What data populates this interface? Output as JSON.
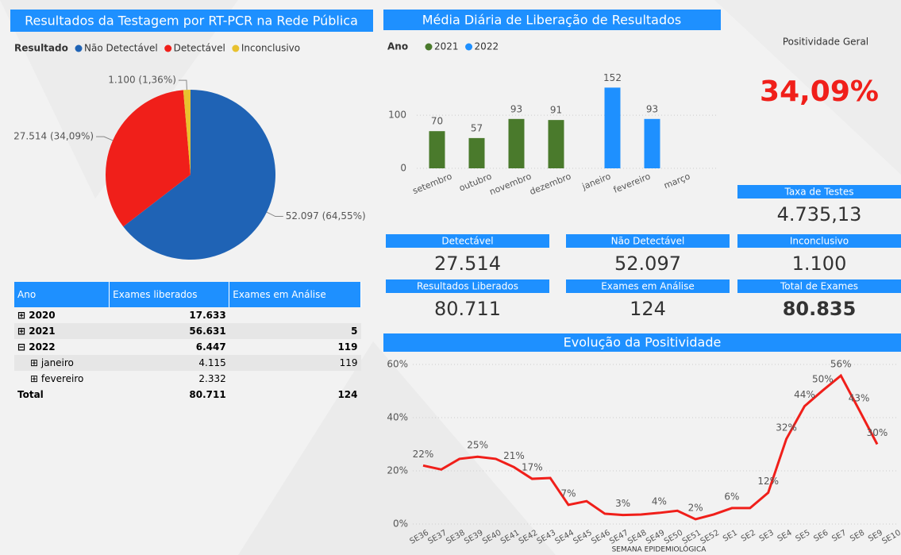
{
  "chart_data": [
    {
      "type": "pie",
      "title": "Resultados da Testagem por RT-PCR na Rede Pública",
      "legend_title": "Resultado",
      "categories": [
        "Não Detectável",
        "Detectável",
        "Inconclusivo"
      ],
      "values": [
        52097,
        27514,
        1100
      ],
      "value_labels": [
        "52.097 (64,55%)",
        "27.514 (34,09%)",
        "1.100 (1,36%)"
      ],
      "colors": [
        "#1f63b5",
        "#f01f1a",
        "#e8c12f"
      ]
    },
    {
      "type": "bar",
      "title": "Média Diária de Liberação de Resultados",
      "legend_title": "Ano",
      "categories": [
        "setembro",
        "outubro",
        "novembro",
        "dezembro",
        "janeiro",
        "fevereiro",
        "março"
      ],
      "series": [
        {
          "name": "2021",
          "color": "#4a7a2c",
          "values": [
            70,
            57,
            93,
            91,
            null,
            null,
            null
          ]
        },
        {
          "name": "2022",
          "color": "#1e90ff",
          "values": [
            null,
            null,
            null,
            null,
            152,
            93,
            null
          ]
        }
      ],
      "ylim": [
        0,
        160
      ],
      "yticks": [
        0,
        100
      ],
      "grid": true
    },
    {
      "type": "line",
      "title": "Evolução da Positividade",
      "xlabel": "SEMANA EPIDEMIOLÓGICA",
      "categories": [
        "SE36",
        "SE37",
        "SE38",
        "SE39",
        "SE40",
        "SE41",
        "SE42",
        "SE43",
        "SE44",
        "SE45",
        "SE46",
        "SE47",
        "SE48",
        "SE49",
        "SE50",
        "SE51",
        "SE52",
        "SE1",
        "SE2",
        "SE3",
        "SE4",
        "SE5",
        "SE6",
        "SE7",
        "SE8",
        "SE9",
        "SE10"
      ],
      "series": [
        {
          "name": "Positividade",
          "color": "#f01f1a",
          "values": [
            22,
            20.5,
            24.5,
            25.3,
            24.5,
            21.4,
            17,
            17.3,
            7.2,
            8.6,
            3.9,
            3.4,
            3.6,
            4.2,
            5,
            1.8,
            3.6,
            6,
            6,
            11.8,
            32,
            44.3,
            50.2,
            55.8,
            43,
            30,
            null
          ],
          "value_labels": [
            "22%",
            null,
            null,
            "25%",
            null,
            "21%",
            "17%",
            null,
            "7%",
            null,
            null,
            "3%",
            null,
            "4%",
            null,
            "2%",
            null,
            "6%",
            null,
            "12%",
            "32%",
            "44%",
            "50%",
            "56%",
            "43%",
            "30%",
            null
          ]
        }
      ],
      "ylim": [
        0,
        60
      ],
      "yticks": [
        {
          "value": 0,
          "label": "0%"
        },
        {
          "value": 20,
          "label": "20%"
        },
        {
          "value": 40,
          "label": "40%"
        },
        {
          "value": 60,
          "label": "60%"
        }
      ],
      "grid": true
    }
  ],
  "kpi": {
    "title": "Positividade Geral",
    "value": "34,09%"
  },
  "cards": [
    {
      "title": "Taxa de Testes",
      "value": "4.735,13"
    },
    {
      "title": "Detectável",
      "value": "27.514"
    },
    {
      "title": "Não Detectável",
      "value": "52.097"
    },
    {
      "title": "Inconclusivo",
      "value": "1.100"
    },
    {
      "title": "Resultados Liberados",
      "value": "80.711"
    },
    {
      "title": "Exames em Análise",
      "value": "124"
    },
    {
      "title": "Total de Exames",
      "value": "80.835"
    }
  ],
  "table": {
    "headers": [
      "Ano",
      "Exames liberados",
      "Exames em Análise"
    ],
    "rows": [
      {
        "label": "2020",
        "liberados": "17.633"
      },
      {
        "label": "2021",
        "liberados": "56.631",
        "analise": "5"
      },
      {
        "label": "2022",
        "liberados": "6.447",
        "analise": "119"
      },
      {
        "label": "janeiro",
        "liberados": "4.115",
        "analise": "119"
      },
      {
        "label": "fevereiro",
        "liberados": "2.332"
      },
      {
        "label": "Total",
        "liberados": "80.711",
        "analise": "124"
      }
    ]
  }
}
